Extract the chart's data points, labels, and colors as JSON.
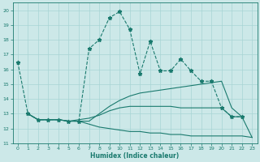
{
  "xlabel": "Humidex (Indice chaleur)",
  "bg_color": "#cce8e8",
  "line_color": "#1a7a6e",
  "grid_color": "#a8d4d4",
  "xlim": [
    -0.5,
    23.5
  ],
  "ylim": [
    11,
    20.5
  ],
  "xticks": [
    0,
    1,
    2,
    3,
    4,
    5,
    6,
    7,
    8,
    9,
    10,
    11,
    12,
    13,
    14,
    15,
    16,
    17,
    18,
    19,
    20,
    21,
    22,
    23
  ],
  "yticks": [
    11,
    12,
    13,
    14,
    15,
    16,
    17,
    18,
    19,
    20
  ],
  "series": [
    {
      "x": [
        0,
        1,
        2,
        3,
        4,
        5,
        6,
        7,
        8,
        9,
        10,
        11,
        12,
        13,
        14,
        15,
        16,
        17,
        18,
        19,
        20,
        21,
        22
      ],
      "y": [
        16.5,
        13.0,
        12.6,
        12.6,
        12.6,
        12.5,
        12.5,
        17.4,
        18.0,
        19.5,
        19.9,
        18.7,
        15.7,
        17.9,
        15.9,
        15.9,
        16.7,
        15.9,
        15.2,
        15.2,
        13.4,
        12.8,
        12.8
      ],
      "marker": "*",
      "linestyle": "--",
      "linewidth": 0.8,
      "markersize": 3.5
    },
    {
      "x": [
        1,
        2,
        3,
        4,
        5,
        6,
        7,
        8,
        9,
        10,
        11,
        12,
        13,
        14,
        15,
        16,
        17,
        18,
        19,
        20,
        21,
        22,
        23
      ],
      "y": [
        13.0,
        12.6,
        12.6,
        12.6,
        12.5,
        12.5,
        12.5,
        13.0,
        13.5,
        13.9,
        14.2,
        14.4,
        14.5,
        14.6,
        14.7,
        14.8,
        14.9,
        15.0,
        15.1,
        15.2,
        13.4,
        12.8,
        null
      ],
      "marker": null,
      "linestyle": "-",
      "linewidth": 0.8,
      "markersize": null
    },
    {
      "x": [
        1,
        2,
        3,
        4,
        5,
        6,
        7,
        8,
        9,
        10,
        11,
        12,
        13,
        14,
        15,
        16,
        17,
        18,
        19,
        20,
        21,
        22,
        23
      ],
      "y": [
        13.0,
        12.6,
        12.6,
        12.6,
        12.5,
        12.5,
        12.3,
        12.1,
        12.0,
        11.9,
        11.8,
        11.8,
        11.7,
        11.7,
        11.6,
        11.6,
        11.5,
        11.5,
        11.5,
        11.5,
        11.5,
        11.5,
        11.4
      ],
      "marker": null,
      "linestyle": "-",
      "linewidth": 0.8,
      "markersize": null
    },
    {
      "x": [
        1,
        2,
        3,
        4,
        5,
        6,
        7,
        8,
        9,
        10,
        11,
        12,
        13,
        14,
        15,
        16,
        17,
        18,
        19,
        20,
        21,
        22,
        23
      ],
      "y": [
        13.0,
        12.6,
        12.6,
        12.6,
        12.5,
        12.6,
        12.7,
        12.9,
        13.2,
        13.4,
        13.5,
        13.5,
        13.5,
        13.5,
        13.5,
        13.4,
        13.4,
        13.4,
        13.4,
        13.4,
        12.8,
        12.8,
        11.4
      ],
      "marker": null,
      "linestyle": "-",
      "linewidth": 0.8,
      "markersize": null
    }
  ]
}
